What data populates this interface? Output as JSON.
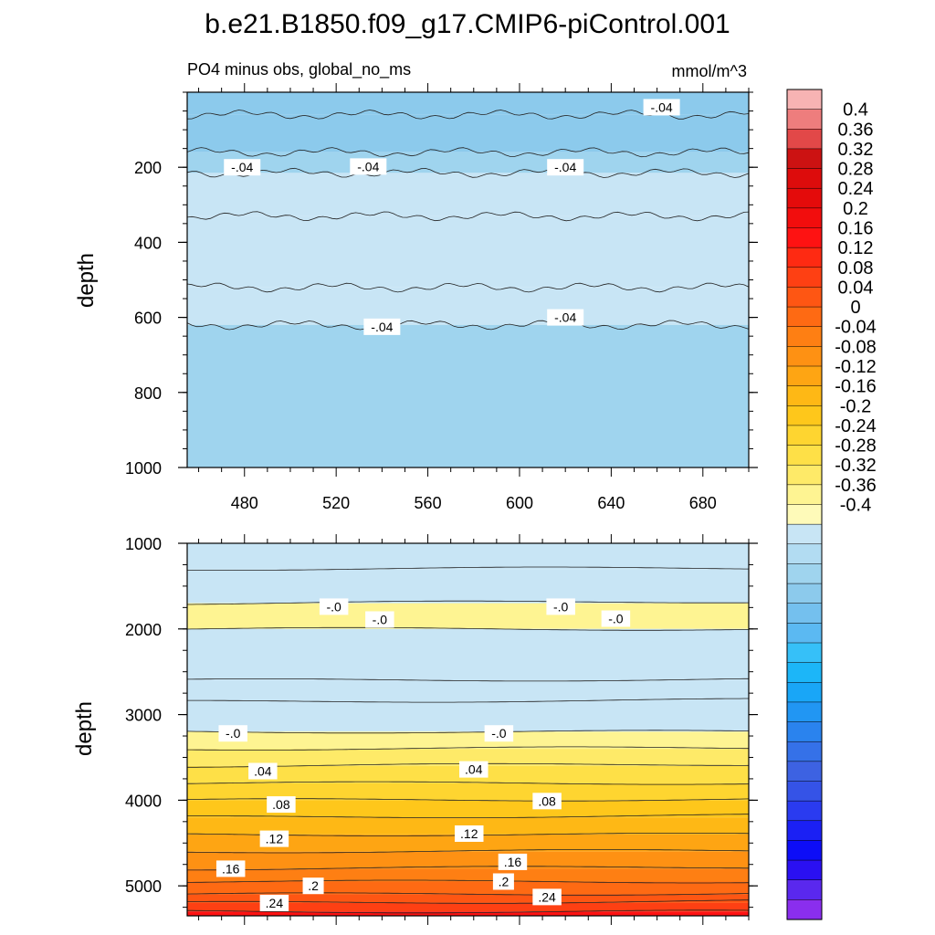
{
  "chart_data": [
    {
      "type": "heatmap",
      "title": "b.e21.B1850.f09_g17.CMIP6-piControl.001",
      "subtitle_left": "PO4 minus obs, global_no_ms",
      "subtitle_right": "mmol/m^3",
      "ylabel": "depth",
      "xlim": [
        455,
        700
      ],
      "ylim": [
        1000,
        0
      ],
      "x_ticks": [
        "480",
        "520",
        "560",
        "600",
        "640",
        "680"
      ],
      "x_tick_values": [
        480,
        520,
        560,
        600,
        640,
        680
      ],
      "y_ticks": [
        "200",
        "400",
        "600",
        "800",
        "1000"
      ],
      "y_tick_values": [
        200,
        400,
        600,
        800,
        1000
      ],
      "bands": [
        {
          "top": 0,
          "bottom": 60,
          "value": -0.08
        },
        {
          "top": 60,
          "bottom": 160,
          "value": -0.08
        },
        {
          "top": 160,
          "bottom": 215,
          "value": -0.06
        },
        {
          "top": 215,
          "bottom": 330,
          "value": -0.04
        },
        {
          "top": 330,
          "bottom": 520,
          "value": -0.02
        },
        {
          "top": 520,
          "bottom": 620,
          "value": -0.04
        },
        {
          "top": 620,
          "bottom": 1000,
          "value": -0.06
        }
      ],
      "contour_levels": [
        60,
        170,
        215,
        330,
        520,
        620
      ],
      "contour_labels": [
        {
          "text": "-.04",
          "x": 662,
          "y": 40
        },
        {
          "text": "-.04",
          "x": 479,
          "y": 200
        },
        {
          "text": "-.04",
          "x": 534,
          "y": 198
        },
        {
          "text": "-.04",
          "x": 620,
          "y": 200
        },
        {
          "text": "-.04",
          "x": 540,
          "y": 625
        },
        {
          "text": "-.04",
          "x": 620,
          "y": 600
        }
      ]
    },
    {
      "type": "heatmap",
      "ylabel": "depth",
      "xlim": [
        455,
        700
      ],
      "ylim": [
        5350,
        1000
      ],
      "y_ticks": [
        "1000",
        "2000",
        "3000",
        "4000",
        "5000"
      ],
      "y_tick_values": [
        1000,
        2000,
        3000,
        4000,
        5000
      ],
      "bands": [
        {
          "top": 1000,
          "bottom": 1300,
          "value": -0.04
        },
        {
          "top": 1300,
          "bottom": 1700,
          "value": -0.02
        },
        {
          "top": 1700,
          "bottom": 2000,
          "value": 0.01
        },
        {
          "top": 2000,
          "bottom": 2600,
          "value": -0.02
        },
        {
          "top": 2600,
          "bottom": 2850,
          "value": -0.04
        },
        {
          "top": 2850,
          "bottom": 3200,
          "value": -0.02
        },
        {
          "top": 3200,
          "bottom": 3400,
          "value": 0.01
        },
        {
          "top": 3400,
          "bottom": 3600,
          "value": 0.03
        },
        {
          "top": 3600,
          "bottom": 3800,
          "value": 0.05
        },
        {
          "top": 3800,
          "bottom": 4000,
          "value": 0.07
        },
        {
          "top": 4000,
          "bottom": 4200,
          "value": 0.09
        },
        {
          "top": 4200,
          "bottom": 4400,
          "value": 0.11
        },
        {
          "top": 4400,
          "bottom": 4600,
          "value": 0.13
        },
        {
          "top": 4600,
          "bottom": 4800,
          "value": 0.15
        },
        {
          "top": 4800,
          "bottom": 4950,
          "value": 0.17
        },
        {
          "top": 4950,
          "bottom": 5100,
          "value": 0.19
        },
        {
          "top": 5100,
          "bottom": 5200,
          "value": 0.21
        },
        {
          "top": 5200,
          "bottom": 5300,
          "value": 0.23
        },
        {
          "top": 5300,
          "bottom": 5350,
          "value": 0.27
        }
      ],
      "contour_labels": [
        {
          "text": "-.0",
          "x": 519,
          "y": 1740
        },
        {
          "text": "-.0",
          "x": 539,
          "y": 1890
        },
        {
          "text": "-.0",
          "x": 618,
          "y": 1740
        },
        {
          "text": "-.0",
          "x": 642,
          "y": 1880
        },
        {
          "text": "-.0",
          "x": 475,
          "y": 3220
        },
        {
          "text": "-.0",
          "x": 591,
          "y": 3220
        },
        {
          "text": ".04",
          "x": 488,
          "y": 3660
        },
        {
          "text": ".04",
          "x": 580,
          "y": 3640
        },
        {
          "text": ".08",
          "x": 496,
          "y": 4050
        },
        {
          "text": ".08",
          "x": 612,
          "y": 4010
        },
        {
          "text": ".12",
          "x": 493,
          "y": 4450
        },
        {
          "text": ".12",
          "x": 578,
          "y": 4390
        },
        {
          "text": ".16",
          "x": 474,
          "y": 4800
        },
        {
          "text": ".16",
          "x": 597,
          "y": 4720
        },
        {
          "text": ".2",
          "x": 510,
          "y": 5000
        },
        {
          "text": ".2",
          "x": 593,
          "y": 4950
        },
        {
          "text": ".24",
          "x": 493,
          "y": 5200
        },
        {
          "text": ".24",
          "x": 612,
          "y": 5130
        }
      ]
    }
  ],
  "colorbar": {
    "tick_labels": [
      "0.4",
      "0.36",
      "0.32",
      "0.28",
      "0.24",
      "0.2",
      "0.16",
      "0.12",
      "0.08",
      "0.04",
      "0",
      "-0.04",
      "-0.08",
      "-0.12",
      "-0.16",
      "-0.2",
      "-0.24",
      "-0.28",
      "-0.32",
      "-0.36",
      "-0.4"
    ],
    "colors_top_to_bottom": [
      "#f7b3b3",
      "#ee7d7d",
      "#e24848",
      "#cc1212",
      "#dd0c0c",
      "#e40b0b",
      "#f20d0d",
      "#fe1212",
      "#fe2a12",
      "#fe4013",
      "#fe5613",
      "#fe6a13",
      "#fe7f13",
      "#fe9113",
      "#fea513",
      "#feb815",
      "#fec71b",
      "#fed530",
      "#fee047",
      "#feea68",
      "#fef492",
      "#fefab9",
      "#c8e5f5",
      "#b2dcf2",
      "#9fd4ee",
      "#8ccaec",
      "#74c0ee",
      "#5bb9f2",
      "#36c0f8",
      "#1cb6f8",
      "#19a6f7",
      "#2196f3",
      "#2a83ee",
      "#3571e8",
      "#3d62e2",
      "#3553e7",
      "#2a3bf0",
      "#1b20f4",
      "#0d0df7",
      "#2a10f2",
      "#5a28ee",
      "#8a2eee"
    ]
  }
}
